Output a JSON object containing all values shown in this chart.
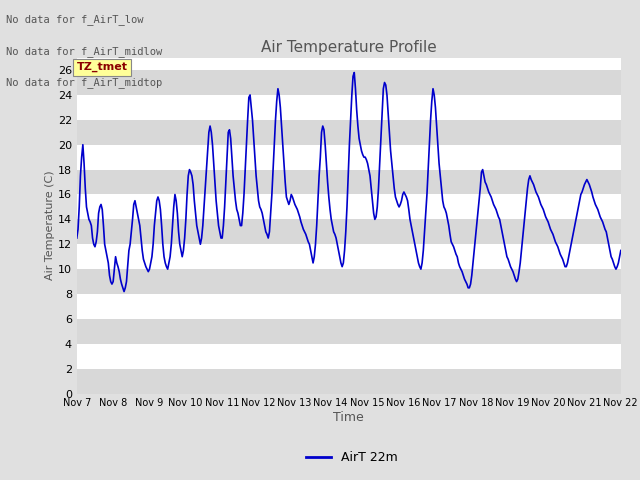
{
  "title": "Air Temperature Profile",
  "xlabel": "Time",
  "ylabel": "Air Temperature (C)",
  "line_color": "#0000CC",
  "line_width": 1.2,
  "ylim": [
    0,
    27
  ],
  "yticks": [
    0,
    2,
    4,
    6,
    8,
    10,
    12,
    14,
    16,
    18,
    20,
    22,
    24,
    26
  ],
  "x_tick_labels": [
    "Nov 7",
    "Nov 8",
    "Nov 9",
    "Nov 10",
    "Nov 11",
    "Nov 12",
    "Nov 13",
    "Nov 14",
    "Nov 15",
    "Nov 16",
    "Nov 17",
    "Nov 18",
    "Nov 19",
    "Nov 20",
    "Nov 21",
    "Nov 22"
  ],
  "legend_label": "AirT 22m",
  "text_lines": [
    "No data for f_AirT_low",
    "No data for f_AirT_midlow",
    "No data for f_AirT_midtop"
  ],
  "annotation_text": "TZ_tmet",
  "bg_color": "#e0e0e0",
  "plot_bg_color": "#ffffff",
  "band_color": "#d8d8d8",
  "temperature_data": [
    12.5,
    13.2,
    15.0,
    17.5,
    19.0,
    20.0,
    18.5,
    16.5,
    15.0,
    14.5,
    14.0,
    13.8,
    13.5,
    12.5,
    12.0,
    11.8,
    12.2,
    13.0,
    14.5,
    15.0,
    15.2,
    14.8,
    13.5,
    12.0,
    11.5,
    11.0,
    10.5,
    9.5,
    9.0,
    8.8,
    9.0,
    10.0,
    11.0,
    10.5,
    10.2,
    9.8,
    9.2,
    8.8,
    8.5,
    8.2,
    8.5,
    9.0,
    10.2,
    11.5,
    12.0,
    13.0,
    14.0,
    15.2,
    15.5,
    15.0,
    14.5,
    14.0,
    13.5,
    12.5,
    11.5,
    10.8,
    10.5,
    10.2,
    10.0,
    9.8,
    10.0,
    10.5,
    11.0,
    12.0,
    13.5,
    14.5,
    15.5,
    15.8,
    15.5,
    14.8,
    13.5,
    12.0,
    11.0,
    10.5,
    10.2,
    10.0,
    10.5,
    11.0,
    12.0,
    13.5,
    15.0,
    16.0,
    15.5,
    14.5,
    13.0,
    12.0,
    11.5,
    11.0,
    11.5,
    12.5,
    14.0,
    16.0,
    17.5,
    18.0,
    17.8,
    17.5,
    16.8,
    15.5,
    14.5,
    13.5,
    13.0,
    12.5,
    12.0,
    12.5,
    13.5,
    15.0,
    16.5,
    18.0,
    19.5,
    21.0,
    21.5,
    21.0,
    20.0,
    18.5,
    17.0,
    15.5,
    14.5,
    13.5,
    13.0,
    12.5,
    12.5,
    13.5,
    15.0,
    17.0,
    19.0,
    21.0,
    21.2,
    20.5,
    19.0,
    17.5,
    16.5,
    15.5,
    14.8,
    14.5,
    14.0,
    13.5,
    13.5,
    14.5,
    16.0,
    18.0,
    20.0,
    22.0,
    23.8,
    24.0,
    23.0,
    22.0,
    20.5,
    19.0,
    17.5,
    16.5,
    15.5,
    15.0,
    14.8,
    14.5,
    14.0,
    13.5,
    13.0,
    12.8,
    12.5,
    13.0,
    14.5,
    16.0,
    18.0,
    20.0,
    22.0,
    23.5,
    24.5,
    24.0,
    23.0,
    21.5,
    20.0,
    18.5,
    17.0,
    15.8,
    15.5,
    15.2,
    15.5,
    16.0,
    15.8,
    15.5,
    15.2,
    15.0,
    14.8,
    14.5,
    14.2,
    13.8,
    13.5,
    13.2,
    13.0,
    12.8,
    12.5,
    12.2,
    12.0,
    11.5,
    11.0,
    10.5,
    11.0,
    12.0,
    13.5,
    15.5,
    17.5,
    19.0,
    21.0,
    21.5,
    21.2,
    20.0,
    18.5,
    17.0,
    15.8,
    14.8,
    14.0,
    13.5,
    13.0,
    12.8,
    12.5,
    12.0,
    11.5,
    11.0,
    10.5,
    10.2,
    10.5,
    11.5,
    13.0,
    15.0,
    17.5,
    20.0,
    22.0,
    24.0,
    25.5,
    25.8,
    24.5,
    22.8,
    21.5,
    20.5,
    20.0,
    19.5,
    19.2,
    19.0,
    19.0,
    18.8,
    18.5,
    18.0,
    17.5,
    16.5,
    15.5,
    14.5,
    14.0,
    14.2,
    15.0,
    16.5,
    18.5,
    20.5,
    22.5,
    24.5,
    25.0,
    24.8,
    24.0,
    22.5,
    21.0,
    19.5,
    18.5,
    17.5,
    16.5,
    15.8,
    15.5,
    15.2,
    15.0,
    15.2,
    15.5,
    16.0,
    16.2,
    16.0,
    15.8,
    15.5,
    14.8,
    14.0,
    13.5,
    13.0,
    12.5,
    12.0,
    11.5,
    11.0,
    10.5,
    10.2,
    10.0,
    10.5,
    11.5,
    13.0,
    14.5,
    16.0,
    18.0,
    20.0,
    22.0,
    23.5,
    24.5,
    24.0,
    23.0,
    21.5,
    20.0,
    18.5,
    17.5,
    16.5,
    15.5,
    15.0,
    14.8,
    14.5,
    14.0,
    13.5,
    12.8,
    12.2,
    12.0,
    11.8,
    11.5,
    11.2,
    11.0,
    10.5,
    10.2,
    10.0,
    9.8,
    9.5,
    9.2,
    9.0,
    8.8,
    8.5,
    8.5,
    8.8,
    9.5,
    10.5,
    11.5,
    12.5,
    13.5,
    14.5,
    15.5,
    16.5,
    17.8,
    18.0,
    17.5,
    17.0,
    16.8,
    16.5,
    16.2,
    16.0,
    15.8,
    15.5,
    15.2,
    15.0,
    14.8,
    14.5,
    14.2,
    14.0,
    13.5,
    13.0,
    12.5,
    12.0,
    11.5,
    11.0,
    10.8,
    10.5,
    10.2,
    10.0,
    9.8,
    9.5,
    9.2,
    9.0,
    9.2,
    9.8,
    10.5,
    11.5,
    12.5,
    13.5,
    14.5,
    15.5,
    16.5,
    17.2,
    17.5,
    17.2,
    17.0,
    16.8,
    16.5,
    16.2,
    16.0,
    15.8,
    15.5,
    15.2,
    15.0,
    14.8,
    14.5,
    14.2,
    14.0,
    13.8,
    13.5,
    13.2,
    13.0,
    12.8,
    12.5,
    12.2,
    12.0,
    11.8,
    11.5,
    11.2,
    11.0,
    10.8,
    10.5,
    10.2,
    10.2,
    10.5,
    11.0,
    11.5,
    12.0,
    12.5,
    13.0,
    13.5,
    14.0,
    14.5,
    15.0,
    15.5,
    16.0,
    16.2,
    16.5,
    16.8,
    17.0,
    17.2,
    17.0,
    16.8,
    16.5,
    16.2,
    15.8,
    15.5,
    15.2,
    15.0,
    14.8,
    14.5,
    14.2,
    14.0,
    13.8,
    13.5,
    13.2,
    13.0,
    12.5,
    12.0,
    11.5,
    11.0,
    10.8,
    10.5,
    10.2,
    10.0,
    10.2,
    10.5,
    11.0,
    11.5
  ]
}
